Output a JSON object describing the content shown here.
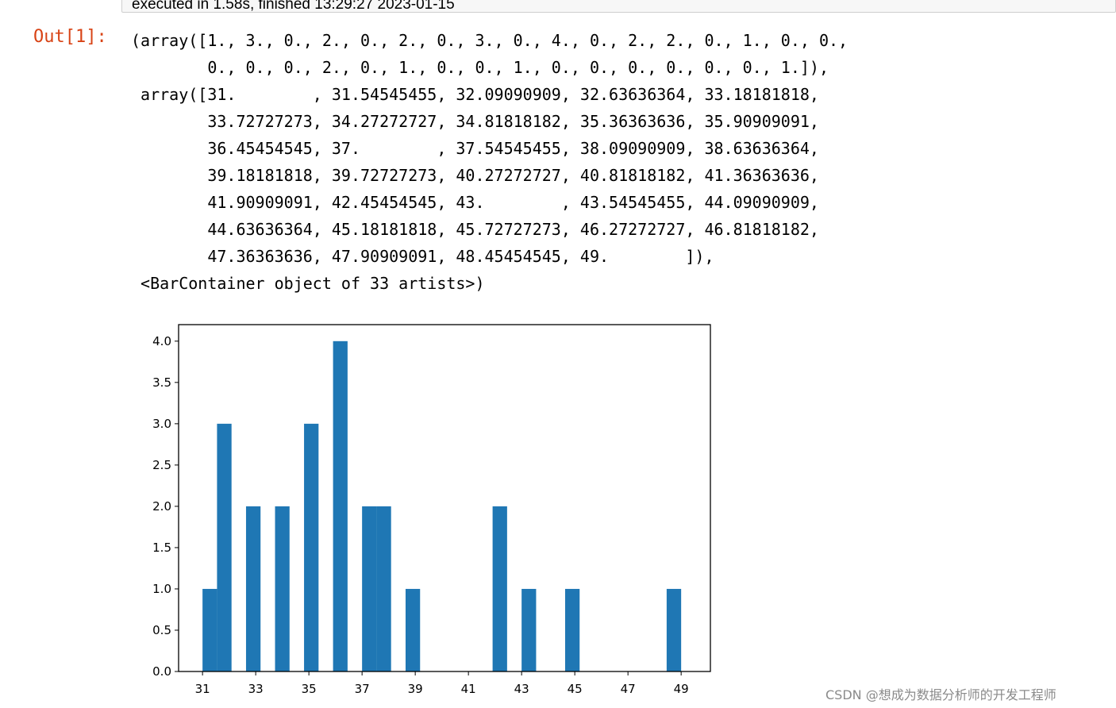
{
  "previous_cell": {
    "execution_info": "executed in 1.58s, finished 13:29:27 2023-01-15"
  },
  "output_prompt": "Out[1]:",
  "output_text": "(array([1., 3., 0., 2., 0., 2., 0., 3., 0., 4., 0., 2., 2., 0., 1., 0., 0.,\n        0., 0., 0., 2., 0., 1., 0., 0., 1., 0., 0., 0., 0., 0., 0., 1.]),\n array([31.        , 31.54545455, 32.09090909, 32.63636364, 33.18181818,\n        33.72727273, 34.27272727, 34.81818182, 35.36363636, 35.90909091,\n        36.45454545, 37.        , 37.54545455, 38.09090909, 38.63636364,\n        39.18181818, 39.72727273, 40.27272727, 40.81818182, 41.36363636,\n        41.90909091, 42.45454545, 43.        , 43.54545455, 44.09090909,\n        44.63636364, 45.18181818, 45.72727273, 46.27272727, 46.81818182,\n        47.36363636, 47.90909091, 48.45454545, 49.        ]),\n <BarContainer object of 33 artists>)",
  "chart_data": {
    "type": "bar",
    "histogram": true,
    "bin_edges": [
      31,
      31.54545455,
      32.09090909,
      32.63636364,
      33.18181818,
      33.72727273,
      34.27272727,
      34.81818182,
      35.36363636,
      35.90909091,
      36.45454545,
      37,
      37.54545455,
      38.09090909,
      38.63636364,
      39.18181818,
      39.72727273,
      40.27272727,
      40.81818182,
      41.36363636,
      41.90909091,
      42.45454545,
      43,
      43.54545455,
      44.09090909,
      44.63636364,
      45.18181818,
      45.72727273,
      46.27272727,
      46.81818182,
      47.36363636,
      47.90909091,
      48.45454545,
      49
    ],
    "counts": [
      1,
      3,
      0,
      2,
      0,
      2,
      0,
      3,
      0,
      4,
      0,
      2,
      2,
      0,
      1,
      0,
      0,
      0,
      0,
      0,
      2,
      0,
      1,
      0,
      0,
      1,
      0,
      0,
      0,
      0,
      0,
      0,
      1
    ],
    "xlim": [
      30.1,
      50.1
    ],
    "ylim": [
      0,
      4.2
    ],
    "xticks": [
      31,
      33,
      35,
      37,
      39,
      41,
      43,
      45,
      47,
      49
    ],
    "xtick_labels": [
      "31",
      "33",
      "35",
      "37",
      "39",
      "41",
      "43",
      "45",
      "47",
      "49"
    ],
    "yticks": [
      0,
      0.5,
      1,
      1.5,
      2,
      2.5,
      3,
      3.5,
      4
    ],
    "ytick_labels": [
      "0.0",
      "0.5",
      "1.0",
      "1.5",
      "2.0",
      "2.5",
      "3.0",
      "3.5",
      "4.0"
    ],
    "bar_color": "#1f77b4",
    "grid": false
  },
  "watermark": "CSDN @想成为数据分析师的开发工程师"
}
